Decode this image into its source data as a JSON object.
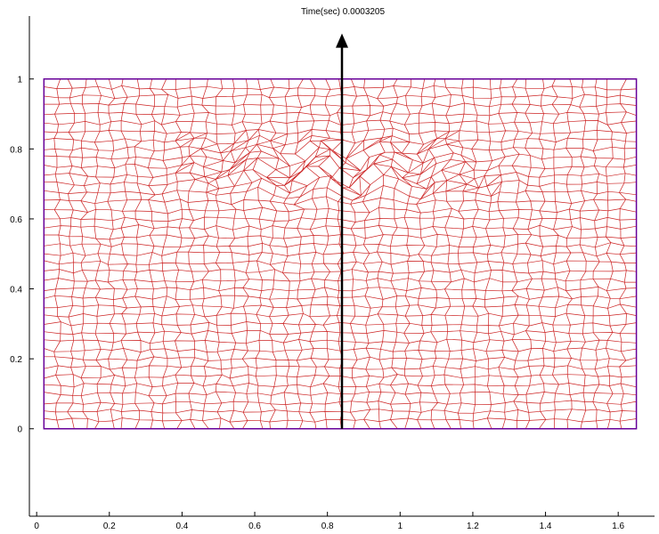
{
  "chart_data": {
    "type": "mesh",
    "title": "Time(sec) 0.0003205",
    "xlabel": "",
    "ylabel": "",
    "xlim": [
      -0.02,
      1.7
    ],
    "ylim": [
      -0.25,
      1.18
    ],
    "x_ticks": [
      0,
      0.2,
      0.4,
      0.6,
      0.8,
      1,
      1.2,
      1.4,
      1.6
    ],
    "y_ticks": [
      0,
      0.2,
      0.4,
      0.6,
      0.8,
      1
    ],
    "x_tick_labels": [
      "0",
      "0.2",
      "0.4",
      "0.6",
      "0.8",
      "1",
      "1.2",
      "1.4",
      "1.6"
    ],
    "y_tick_labels": [
      "0",
      "0.2",
      "0.4",
      "0.6",
      "0.8",
      "1"
    ],
    "grid": false,
    "domain_rectangle": {
      "x": [
        0.02,
        1.65
      ],
      "y": [
        0,
        1
      ]
    },
    "mesh": {
      "columns": 44,
      "rows": 40
    },
    "arrow": {
      "x": 0.84,
      "y_start": 0,
      "y_end": 1.13
    },
    "colors": {
      "mesh": "#cc2222",
      "boundary": "#660099",
      "arrow": "#000000",
      "axis": "#000000"
    }
  }
}
